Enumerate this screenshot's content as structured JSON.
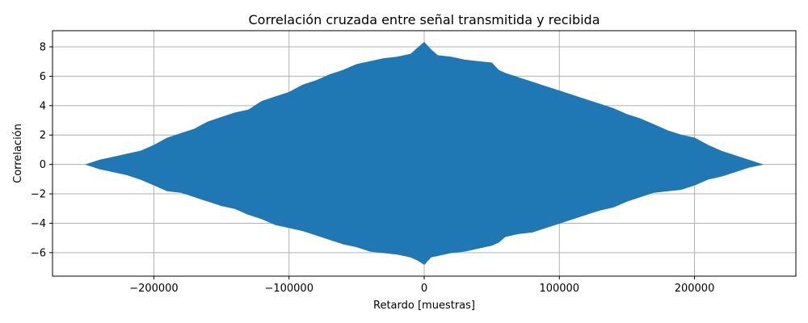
{
  "chart_data": {
    "type": "area",
    "title": "Correlación cruzada entre señal transmitida y recibida",
    "xlabel": "Retardo [muestras]",
    "ylabel": "Correlación",
    "xlim": [
      -275000,
      275000
    ],
    "ylim": [
      -7.6,
      9.1
    ],
    "xticks": [
      -200000,
      -100000,
      0,
      100000,
      200000
    ],
    "xtick_labels": [
      "−200000",
      "−100000",
      "0",
      "100000",
      "200000"
    ],
    "yticks": [
      -6,
      -4,
      -2,
      0,
      2,
      4,
      6,
      8
    ],
    "ytick_labels": [
      "−6",
      "−4",
      "−2",
      "0",
      "2",
      "4",
      "6",
      "8"
    ],
    "grid": true,
    "color": "#1f77b4",
    "series": [
      {
        "x": [
          -250000,
          -240000,
          -230000,
          -220000,
          -210000,
          -200000,
          -190000,
          -180000,
          -170000,
          -160000,
          -150000,
          -140000,
          -130000,
          -120000,
          -110000,
          -100000,
          -90000,
          -80000,
          -70000,
          -60000,
          -50000,
          -40000,
          -30000,
          -20000,
          -10000,
          -5000,
          0,
          5000,
          10000,
          20000,
          30000,
          40000,
          50000,
          55000,
          60000,
          70000,
          80000,
          90000,
          100000,
          110000,
          120000,
          130000,
          140000,
          150000,
          160000,
          170000,
          180000,
          190000,
          200000,
          210000,
          220000,
          230000,
          240000,
          250000
        ],
        "upper": [
          0.0,
          0.3,
          0.5,
          0.7,
          0.9,
          1.3,
          1.8,
          2.1,
          2.4,
          2.9,
          3.2,
          3.5,
          3.7,
          4.3,
          4.6,
          4.9,
          5.4,
          5.7,
          6.1,
          6.4,
          6.8,
          7.0,
          7.2,
          7.3,
          7.5,
          7.9,
          8.3,
          7.8,
          7.4,
          7.3,
          7.1,
          7.0,
          6.9,
          6.4,
          6.2,
          5.9,
          5.6,
          5.3,
          5.0,
          4.7,
          4.4,
          4.1,
          3.8,
          3.4,
          3.1,
          2.7,
          2.3,
          2.0,
          1.8,
          1.3,
          0.9,
          0.6,
          0.3,
          0.0
        ],
        "lower": [
          0.0,
          -0.3,
          -0.5,
          -0.7,
          -1.0,
          -1.4,
          -1.8,
          -1.9,
          -2.2,
          -2.5,
          -2.8,
          -3.0,
          -3.4,
          -3.7,
          -4.1,
          -4.3,
          -4.5,
          -4.8,
          -5.1,
          -5.4,
          -5.6,
          -5.9,
          -6.0,
          -6.1,
          -6.3,
          -6.5,
          -6.8,
          -6.3,
          -6.2,
          -6.0,
          -5.9,
          -5.7,
          -5.5,
          -5.3,
          -4.9,
          -4.7,
          -4.6,
          -4.3,
          -4.0,
          -3.7,
          -3.4,
          -3.1,
          -2.9,
          -2.5,
          -2.2,
          -1.9,
          -1.8,
          -1.7,
          -1.4,
          -1.0,
          -0.8,
          -0.5,
          -0.2,
          0.0
        ]
      }
    ]
  }
}
